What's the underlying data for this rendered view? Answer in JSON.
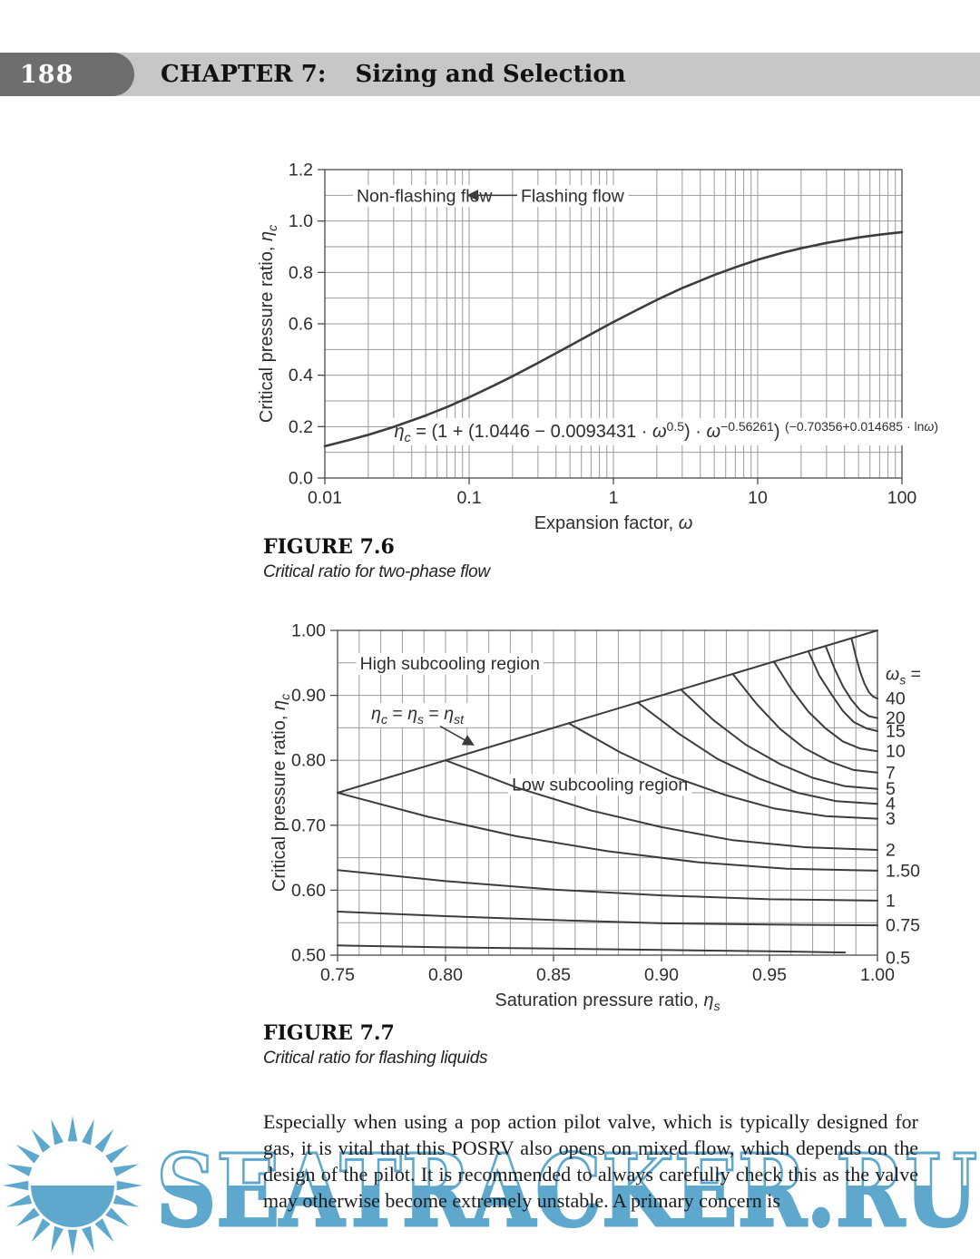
{
  "header": {
    "page_number": "188",
    "chapter_label": "CHAPTER 7:",
    "chapter_title": "Sizing and Selection"
  },
  "colors": {
    "band": "#c7c7c7",
    "badge": "#6e6e6e",
    "grid": "#9b9b9b",
    "axis": "#4a4a4a",
    "curve": "#3c3c3c",
    "label": "#2e2e2e",
    "watermark": "#5fa8cd"
  },
  "figure6": {
    "label": "FIGURE 7.6",
    "caption": "Critical ratio for two-phase flow"
  },
  "figure7": {
    "label": "FIGURE 7.7",
    "caption": "Critical ratio for flashing liquids"
  },
  "paragraph": {
    "text": "Especially when using a pop action pilot valve, which is typically designed for gas, it is vital that this POSRV also opens on mixed flow, which depends on the design of the pilot. It is recommended to always carefully check this as the valve may otherwise become extremely unstable. A primary concern is"
  },
  "watermark": {
    "text": "SEATRACKER.RU"
  },
  "chart_data": [
    {
      "type": "line",
      "title": "",
      "xscale": "log",
      "xlim": [
        0.01,
        100
      ],
      "ylim": [
        0,
        1.2
      ],
      "xlabel_parts": [
        [
          "n",
          "Expansion factor, "
        ],
        [
          "i",
          "ω"
        ]
      ],
      "ylabel_parts": [
        [
          "n",
          "Critical pressure ratio, "
        ],
        [
          "i",
          "η"
        ],
        [
          "di",
          "c"
        ]
      ],
      "xticks": [
        {
          "v": 0.01,
          "t": "0.01"
        },
        {
          "v": 0.1,
          "t": "0.1"
        },
        {
          "v": 1,
          "t": "1"
        },
        {
          "v": 10,
          "t": "10"
        },
        {
          "v": 100,
          "t": "100"
        }
      ],
      "yticks": [
        {
          "v": 0,
          "t": "0.0"
        },
        {
          "v": 0.2,
          "t": "0.2"
        },
        {
          "v": 0.4,
          "t": "0.4"
        },
        {
          "v": 0.6,
          "t": "0.6"
        },
        {
          "v": 0.8,
          "t": "0.8"
        },
        {
          "v": 1.0,
          "t": "1.0"
        },
        {
          "v": 1.2,
          "t": "1.2"
        }
      ],
      "ygrid_step": 0.1,
      "series": [
        {
          "name": "critical-pressure-ratio-curve",
          "x": [
            0.01,
            0.015,
            0.02,
            0.03,
            0.05,
            0.07,
            0.1,
            0.15,
            0.2,
            0.3,
            0.5,
            0.7,
            1,
            1.5,
            2,
            3,
            5,
            7,
            10,
            15,
            20,
            30,
            50,
            70,
            100
          ],
          "y": [
            0.124,
            0.149,
            0.168,
            0.199,
            0.243,
            0.276,
            0.314,
            0.361,
            0.396,
            0.448,
            0.515,
            0.56,
            0.607,
            0.658,
            0.693,
            0.739,
            0.79,
            0.82,
            0.849,
            0.877,
            0.894,
            0.915,
            0.936,
            0.947,
            0.957
          ]
        }
      ],
      "annotations": [
        {
          "kind": "label",
          "text": "Non-flashing flow",
          "x": 0.049,
          "y": 1.1,
          "bg": true
        },
        {
          "kind": "dblarrow",
          "x1": 0.1,
          "x2": 0.3,
          "y": 1.1
        },
        {
          "kind": "label",
          "text": "Flashing flow",
          "x": 0.52,
          "y": 1.1,
          "bg": true
        },
        {
          "kind": "rich",
          "parts": [
            [
              "i",
              "η"
            ],
            [
              "di",
              "c"
            ],
            [
              "n",
              " = (1 + (1.0446 − 0.0093431 · "
            ],
            [
              "i",
              "ω"
            ],
            [
              "u",
              "0.5"
            ],
            [
              "n",
              ") · "
            ],
            [
              "i",
              "ω"
            ],
            [
              "u",
              "−0.56261"
            ],
            [
              "n",
              ") "
            ],
            [
              "u",
              "(−0.70356+0.014685 · ln"
            ],
            [
              "ui",
              "ω"
            ],
            [
              "u",
              ")"
            ]
          ],
          "x": 0.0303,
          "y": 0.158,
          "anchor": "start",
          "bg": true,
          "size": 20
        }
      ]
    },
    {
      "type": "line",
      "title": "",
      "xscale": "linear",
      "xlim": [
        0.75,
        1.0
      ],
      "ylim": [
        0.5,
        1.0
      ],
      "xlabel_parts": [
        [
          "n",
          "Saturation pressure ratio, "
        ],
        [
          "i",
          "η"
        ],
        [
          "di",
          "s"
        ]
      ],
      "ylabel_parts": [
        [
          "n",
          "Critical pressure ratio, "
        ],
        [
          "i",
          "η"
        ],
        [
          "di",
          "c"
        ]
      ],
      "xticks": [
        {
          "v": 0.75,
          "t": "0.75"
        },
        {
          "v": 0.8,
          "t": "0.80"
        },
        {
          "v": 0.85,
          "t": "0.85"
        },
        {
          "v": 0.9,
          "t": "0.90"
        },
        {
          "v": 0.95,
          "t": "0.95"
        },
        {
          "v": 1.0,
          "t": "1.00"
        }
      ],
      "yticks": [
        {
          "v": 0.5,
          "t": "0.50"
        },
        {
          "v": 0.6,
          "t": "0.60"
        },
        {
          "v": 0.7,
          "t": "0.70"
        },
        {
          "v": 0.8,
          "t": "0.80"
        },
        {
          "v": 0.9,
          "t": "0.90"
        },
        {
          "v": 1.0,
          "t": "1.00"
        }
      ],
      "xgrid_step": 0.01,
      "ygrid_step": 0.05,
      "legend": {
        "header_parts": [
          [
            "i",
            "ω"
          ],
          [
            "di",
            "s"
          ],
          [
            "n",
            " ="
          ]
        ],
        "header_y": 0.932
      },
      "series": [
        {
          "name": "eta-st-boundary-line",
          "x": [
            0.75,
            1.0
          ],
          "y": [
            0.75,
            1.0
          ]
        },
        {
          "name": "omega-40",
          "label": "40",
          "label_y": 0.895,
          "x": [
            0.988,
            0.99,
            0.992,
            0.994,
            0.996,
            0.998,
            1.0
          ],
          "y": [
            0.988,
            0.96,
            0.936,
            0.918,
            0.905,
            0.898,
            0.895
          ]
        },
        {
          "name": "omega-20",
          "label": "20",
          "label_y": 0.865,
          "x": [
            0.976,
            0.98,
            0.984,
            0.988,
            0.992,
            0.996,
            1.0
          ],
          "y": [
            0.976,
            0.942,
            0.914,
            0.893,
            0.877,
            0.868,
            0.865
          ]
        },
        {
          "name": "omega-15",
          "label": "15",
          "label_y": 0.845,
          "x": [
            0.968,
            0.973,
            0.979,
            0.984,
            0.989,
            0.995,
            1.0
          ],
          "y": [
            0.968,
            0.931,
            0.9,
            0.876,
            0.859,
            0.849,
            0.845
          ]
        },
        {
          "name": "omega-10",
          "label": "10",
          "label_y": 0.814,
          "x": [
            0.952,
            0.96,
            0.968,
            0.976,
            0.984,
            0.992,
            1.0
          ],
          "y": [
            0.952,
            0.91,
            0.875,
            0.849,
            0.829,
            0.818,
            0.814
          ]
        },
        {
          "name": "omega-7",
          "label": "7",
          "label_y": 0.781,
          "x": [
            0.933,
            0.944,
            0.955,
            0.966,
            0.978,
            0.989,
            1.0
          ],
          "y": [
            0.933,
            0.887,
            0.848,
            0.819,
            0.798,
            0.785,
            0.781
          ]
        },
        {
          "name": "omega-5",
          "label": "5",
          "label_y": 0.756,
          "x": [
            0.909,
            0.924,
            0.939,
            0.955,
            0.97,
            0.985,
            1.0
          ],
          "y": [
            0.909,
            0.862,
            0.824,
            0.794,
            0.773,
            0.76,
            0.756
          ]
        },
        {
          "name": "omega-4",
          "label": "4",
          "label_y": 0.733,
          "x": [
            0.889,
            0.908,
            0.926,
            0.945,
            0.963,
            0.981,
            1.0
          ],
          "y": [
            0.889,
            0.841,
            0.802,
            0.772,
            0.75,
            0.737,
            0.733
          ]
        },
        {
          "name": "omega-3",
          "label": "3",
          "label_y": 0.71,
          "x": [
            0.857,
            0.881,
            0.905,
            0.929,
            0.952,
            0.976,
            1.0
          ],
          "y": [
            0.857,
            0.812,
            0.775,
            0.747,
            0.726,
            0.714,
            0.71
          ]
        },
        {
          "name": "omega-2",
          "label": "2",
          "label_y": 0.662,
          "x": [
            0.8,
            0.833,
            0.867,
            0.9,
            0.933,
            0.967,
            1.0
          ],
          "y": [
            0.8,
            0.758,
            0.723,
            0.697,
            0.677,
            0.666,
            0.662
          ]
        },
        {
          "name": "omega-1-50",
          "label": "1.50",
          "label_y": 0.63,
          "x": [
            0.75,
            0.792,
            0.833,
            0.875,
            0.917,
            0.958,
            1.0
          ],
          "y": [
            0.75,
            0.713,
            0.683,
            0.66,
            0.643,
            0.633,
            0.63
          ]
        },
        {
          "name": "omega-1",
          "label": "1",
          "label_y": 0.584,
          "x": [
            0.75,
            0.8,
            0.85,
            0.9,
            0.95,
            1.0
          ],
          "y": [
            0.631,
            0.614,
            0.601,
            0.592,
            0.586,
            0.584
          ]
        },
        {
          "name": "omega-0-75",
          "label": "0.75",
          "label_y": 0.546,
          "x": [
            0.75,
            0.8,
            0.85,
            0.9,
            0.95,
            1.0
          ],
          "y": [
            0.567,
            0.56,
            0.554,
            0.549,
            0.547,
            0.546
          ]
        },
        {
          "name": "omega-0-5",
          "label": "0.5",
          "label_y": 0.496,
          "x": [
            0.75,
            0.8,
            0.85,
            0.9,
            0.95,
            0.985
          ],
          "y": [
            0.515,
            0.512,
            0.51,
            0.508,
            0.506,
            0.504
          ]
        }
      ],
      "annotations": [
        {
          "kind": "label",
          "text": "High subcooling region",
          "x": 0.802,
          "y": 0.95,
          "bg": true
        },
        {
          "kind": "rich",
          "parts": [
            [
              "i",
              "η"
            ],
            [
              "di",
              "c"
            ],
            [
              "n",
              " = "
            ],
            [
              "i",
              "η"
            ],
            [
              "di",
              "s"
            ],
            [
              "n",
              " = "
            ],
            [
              "i",
              "η"
            ],
            [
              "di",
              "st"
            ]
          ],
          "x": 0.787,
          "y": 0.863,
          "bg": true,
          "size": 19.5
        },
        {
          "kind": "arrow",
          "x1": 0.7975,
          "y1": 0.8525,
          "x2": 0.8125,
          "y2": 0.8245
        },
        {
          "kind": "label",
          "text": "Low subcooling region",
          "x": 0.8715,
          "y": 0.7635,
          "bg": true
        }
      ]
    }
  ]
}
